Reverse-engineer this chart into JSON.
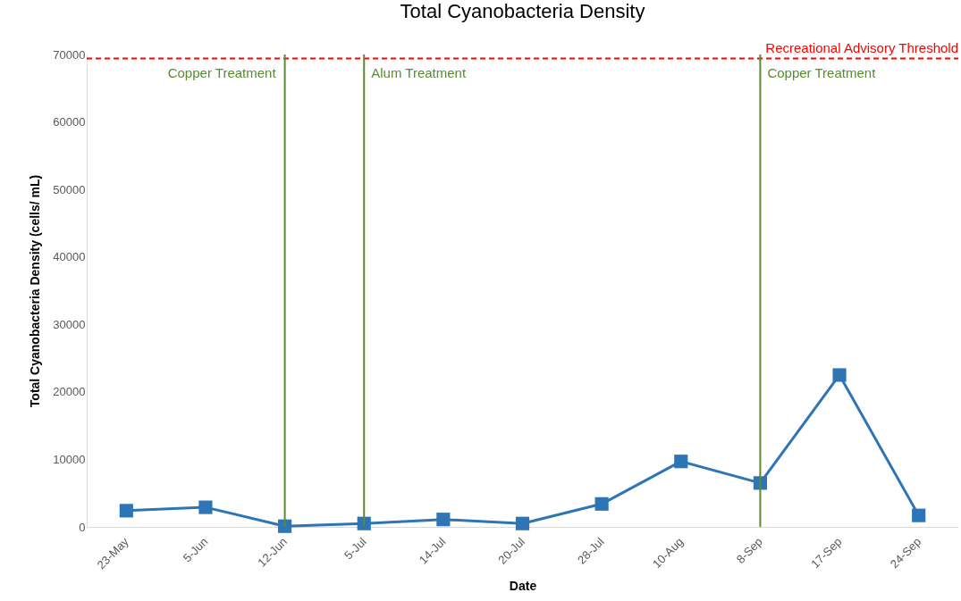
{
  "chart_data": {
    "type": "line",
    "title": "Total Cyanobacteria Density",
    "xlabel": "Date",
    "ylabel": "Total Cyanobacteria Density (cells/ mL)",
    "categories": [
      "23-May",
      "5-Jun",
      "12-Jun",
      "5-Jul",
      "14-Jul",
      "20-Jul",
      "28-Jul",
      "10-Aug",
      "8-Sep",
      "17-Sep",
      "24-Sep"
    ],
    "series": [
      {
        "color": "#2e75b6",
        "values": [
          2400,
          2900,
          100,
          500,
          1100,
          500,
          3400,
          9700,
          6500,
          22500,
          1700
        ]
      }
    ],
    "ylim": [
      0,
      70000
    ],
    "yticks": [
      0,
      10000,
      20000,
      30000,
      40000,
      50000,
      60000,
      70000
    ],
    "marker": "square",
    "line_style": "solid",
    "grid": false,
    "ref_lines": [
      {
        "axis": "y",
        "value": 69400,
        "label": "Recreational Advisory Threshold",
        "color": "#ff0000",
        "line_style": "dashed"
      },
      {
        "axis": "x",
        "value": "12-Jun",
        "label": "Copper Treatment",
        "color": "#5b8a32",
        "line_style": "solid"
      },
      {
        "axis": "x",
        "value": "5-Jul",
        "label": "Alum Treatment",
        "color": "#5b8a32",
        "line_style": "solid"
      },
      {
        "axis": "x",
        "value": "8-Sep",
        "label": "Copper Treatment",
        "color": "#5b8a32",
        "line_style": "solid"
      }
    ]
  }
}
